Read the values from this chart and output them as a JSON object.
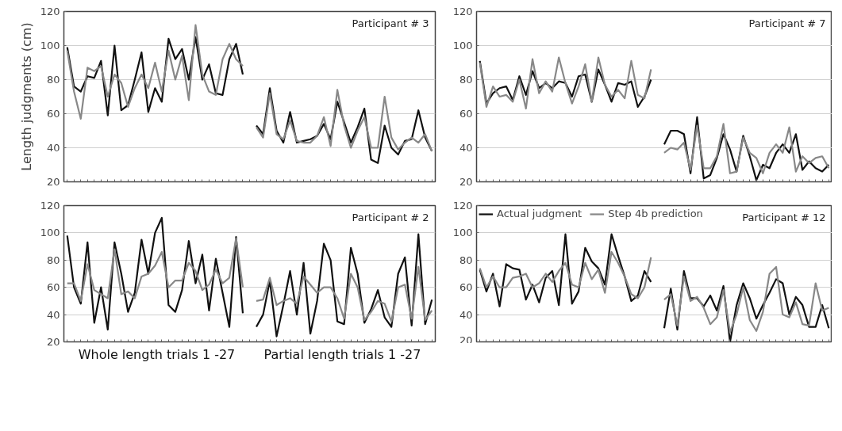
{
  "chart_data": [
    {
      "type": "line",
      "title": "Participant # 3",
      "ylabel": "Length judgments (cm)",
      "categories": [
        null,
        null,
        null,
        null,
        null,
        null,
        null,
        null,
        null,
        null,
        null,
        null,
        null,
        null,
        null,
        null,
        null,
        null,
        null,
        null,
        null,
        null,
        null,
        null,
        null,
        null,
        null,
        null,
        null,
        null,
        null,
        null,
        null,
        null,
        null,
        null,
        null,
        null,
        null,
        null,
        null,
        null,
        null,
        null,
        null,
        null,
        null,
        null,
        null,
        null,
        null,
        null,
        null,
        null,
        null
      ],
      "ylim": [
        20,
        120
      ],
      "yticks": [
        20,
        40,
        60,
        80,
        100,
        120
      ],
      "grid": "y",
      "tick_labels": "y",
      "series": [
        {
          "color": "#111111",
          "values": [
            99,
            76,
            73,
            82,
            81,
            91,
            59,
            100,
            62,
            65,
            80,
            96,
            61,
            75,
            67,
            104,
            92,
            98,
            80,
            105,
            80,
            89,
            72,
            71,
            92,
            101,
            83,
            null,
            53,
            48,
            75,
            50,
            43,
            61,
            43,
            44,
            45,
            47,
            54,
            45,
            67,
            55,
            43,
            52,
            63,
            33,
            31,
            53,
            40,
            36,
            44,
            45,
            62,
            46,
            38
          ]
        },
        {
          "color": "#888888",
          "values": [
            97,
            73,
            57,
            87,
            85,
            88,
            70,
            83,
            78,
            64,
            75,
            83,
            75,
            90,
            73,
            97,
            80,
            94,
            68,
            112,
            83,
            73,
            71,
            92,
            101,
            92,
            88,
            null,
            52,
            46,
            72,
            48,
            45,
            56,
            44,
            43,
            43,
            47,
            58,
            41,
            74,
            53,
            40,
            50,
            58,
            40,
            40,
            70,
            46,
            39,
            43,
            46,
            43,
            48,
            38
          ]
        }
      ]
    },
    {
      "type": "line",
      "title": "Participant # 7",
      "categories": [
        null,
        null,
        null,
        null,
        null,
        null,
        null,
        null,
        null,
        null,
        null,
        null,
        null,
        null,
        null,
        null,
        null,
        null,
        null,
        null,
        null,
        null,
        null,
        null,
        null,
        null,
        null,
        null,
        null,
        null,
        null,
        null,
        null,
        null,
        null,
        null,
        null,
        null,
        null,
        null,
        null,
        null,
        null,
        null,
        null,
        null,
        null,
        null,
        null,
        null,
        null,
        null,
        null,
        null
      ],
      "ylim": [
        20,
        120
      ],
      "yticks": [
        20,
        40,
        60,
        80,
        100,
        120
      ],
      "grid": "y",
      "tick_labels": "y",
      "series": [
        {
          "color": "#111111",
          "values": [
            91,
            66,
            72,
            75,
            76,
            68,
            82,
            71,
            85,
            75,
            78,
            75,
            79,
            78,
            70,
            82,
            83,
            67,
            86,
            77,
            67,
            78,
            77,
            79,
            64,
            70,
            80,
            null,
            42,
            50,
            50,
            48,
            25,
            58,
            22,
            24,
            34,
            48,
            39,
            26,
            47,
            35,
            21,
            30,
            28,
            37,
            42,
            37,
            48,
            27,
            32,
            28,
            26,
            30
          ]
        },
        {
          "color": "#888888",
          "values": [
            90,
            64,
            76,
            70,
            71,
            67,
            80,
            63,
            92,
            72,
            79,
            73,
            93,
            78,
            66,
            76,
            89,
            67,
            93,
            77,
            70,
            74,
            69,
            91,
            71,
            69,
            86,
            null,
            37,
            40,
            39,
            43,
            27,
            53,
            28,
            28,
            35,
            54,
            25,
            26,
            46,
            37,
            34,
            25,
            37,
            42,
            37,
            52,
            26,
            35,
            31,
            34,
            35,
            28
          ]
        }
      ]
    },
    {
      "type": "line",
      "title": "Participant # 2",
      "categories": [
        null,
        null,
        null,
        null,
        null,
        null,
        null,
        null,
        null,
        null,
        null,
        null,
        null,
        null,
        null,
        null,
        null,
        null,
        null,
        null,
        null,
        null,
        null,
        null,
        null,
        null,
        null,
        null,
        null,
        null,
        null,
        null,
        null,
        null,
        null,
        null,
        null,
        null,
        null,
        null,
        null,
        null,
        null,
        null,
        null,
        null,
        null,
        null,
        null,
        null,
        null,
        null,
        null,
        null,
        null
      ],
      "ylim": [
        20,
        120
      ],
      "yticks": [
        20,
        40,
        60,
        80,
        100,
        120
      ],
      "grid": "y",
      "tick_labels": "y",
      "annotations": [
        "Whole length trials 1 -27",
        "Partial length trials 1 -27"
      ],
      "series": [
        {
          "color": "#111111",
          "values": [
            98,
            60,
            48,
            93,
            34,
            60,
            29,
            93,
            70,
            42,
            56,
            95,
            70,
            100,
            111,
            47,
            42,
            58,
            94,
            63,
            84,
            43,
            81,
            56,
            31,
            97,
            41,
            null,
            31,
            40,
            65,
            24,
            47,
            72,
            40,
            78,
            26,
            50,
            92,
            80,
            35,
            33,
            89,
            70,
            34,
            44,
            58,
            38,
            31,
            70,
            82,
            32,
            99,
            33,
            51
          ]
        },
        {
          "color": "#888888",
          "values": [
            63,
            63,
            50,
            77,
            58,
            55,
            52,
            88,
            55,
            57,
            52,
            68,
            70,
            76,
            86,
            60,
            65,
            65,
            78,
            72,
            58,
            62,
            73,
            63,
            67,
            96,
            60,
            null,
            50,
            51,
            67,
            47,
            50,
            52,
            48,
            68,
            62,
            56,
            60,
            60,
            52,
            37,
            70,
            60,
            36,
            42,
            50,
            48,
            35,
            60,
            62,
            37,
            75,
            36,
            43
          ]
        }
      ]
    },
    {
      "type": "line",
      "title": "Participant # 12",
      "categories": [
        null,
        null,
        null,
        null,
        null,
        null,
        null,
        null,
        null,
        null,
        null,
        null,
        null,
        null,
        null,
        null,
        null,
        null,
        null,
        null,
        null,
        null,
        null,
        null,
        null,
        null,
        null,
        null,
        null,
        null,
        null,
        null,
        null,
        null,
        null,
        null,
        null,
        null,
        null,
        null,
        null,
        null,
        null,
        null,
        null,
        null,
        null,
        null,
        null,
        null,
        null,
        null,
        null,
        null
      ],
      "ylim": [
        20,
        120
      ],
      "yticks": [
        20,
        40,
        60,
        80,
        100,
        120
      ],
      "grid": "y",
      "tick_labels": "y",
      "legend": "top left",
      "series": [
        {
          "name": "Actual judgment",
          "color": "#111111",
          "values": [
            73,
            57,
            70,
            46,
            77,
            74,
            73,
            51,
            62,
            49,
            67,
            72,
            47,
            99,
            48,
            57,
            89,
            79,
            74,
            62,
            99,
            83,
            68,
            50,
            54,
            72,
            64,
            null,
            30,
            59,
            29,
            72,
            52,
            52,
            46,
            54,
            43,
            61,
            20,
            47,
            63,
            52,
            37,
            47,
            56,
            66,
            63,
            40,
            53,
            47,
            31,
            31,
            47,
            30
          ]
        },
        {
          "name": "Step 4b prediction",
          "color": "#888888",
          "values": [
            74,
            60,
            68,
            60,
            60,
            67,
            68,
            70,
            60,
            63,
            70,
            64,
            72,
            78,
            62,
            60,
            78,
            66,
            73,
            56,
            86,
            78,
            68,
            55,
            52,
            60,
            82,
            null,
            51,
            55,
            32,
            68,
            50,
            53,
            45,
            33,
            38,
            58,
            27,
            40,
            60,
            36,
            28,
            42,
            70,
            75,
            40,
            38,
            49,
            33,
            32,
            63,
            43,
            45
          ]
        }
      ]
    }
  ]
}
